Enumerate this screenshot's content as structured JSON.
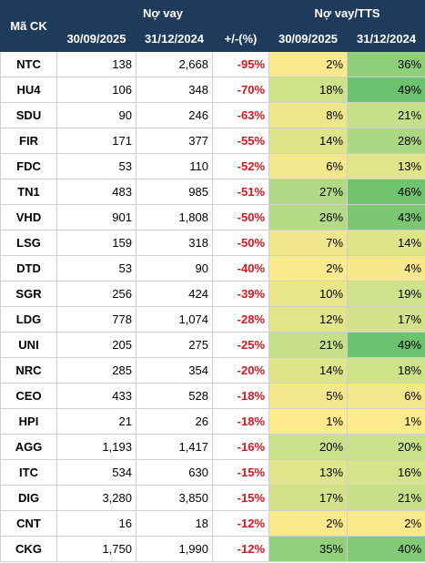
{
  "header": {
    "code_label": "Mã CK",
    "debt_label": "Nợ vay",
    "ratio_label": "Nợ vay/TTS",
    "col_2025": "30/09/2025",
    "col_2024": "31/12/2024",
    "change_label": "+/-(%)",
    "ratio_2025": "30/09/2025",
    "ratio_2024": "31/12/2024"
  },
  "rows": [
    {
      "code": "NTC",
      "d2025": "138",
      "d2024": "2,668",
      "chg": "-95%",
      "r2025": "2%",
      "r2024": "36%",
      "c2025": "#fce98c",
      "c2024": "#8fcf7a"
    },
    {
      "code": "HU4",
      "d2025": "106",
      "d2024": "348",
      "chg": "-70%",
      "r2025": "18%",
      "r2024": "49%",
      "c2025": "#cfe28a",
      "c2024": "#6cc36f"
    },
    {
      "code": "SDU",
      "d2025": "90",
      "d2024": "246",
      "chg": "-63%",
      "r2025": "8%",
      "r2024": "21%",
      "c2025": "#eee68a",
      "c2024": "#c6e08a"
    },
    {
      "code": "FIR",
      "d2025": "171",
      "d2024": "377",
      "chg": "-55%",
      "r2025": "14%",
      "r2024": "28%",
      "c2025": "#dde48a",
      "c2024": "#acd884"
    },
    {
      "code": "FDC",
      "d2025": "53",
      "d2024": "110",
      "chg": "-52%",
      "r2025": "6%",
      "r2024": "13%",
      "c2025": "#f3e78b",
      "c2024": "#e0e48a"
    },
    {
      "code": "TN1",
      "d2025": "483",
      "d2024": "985",
      "chg": "-51%",
      "r2025": "27%",
      "r2024": "46%",
      "c2025": "#b0d985",
      "c2024": "#71c570"
    },
    {
      "code": "VHD",
      "d2025": "901",
      "d2024": "1,808",
      "chg": "-50%",
      "r2025": "26%",
      "r2024": "43%",
      "c2025": "#b4da86",
      "c2024": "#7bc773"
    },
    {
      "code": "LSG",
      "d2025": "159",
      "d2024": "318",
      "chg": "-50%",
      "r2025": "7%",
      "r2024": "14%",
      "c2025": "#f0e68b",
      "c2024": "#dde48a"
    },
    {
      "code": "DTD",
      "d2025": "53",
      "d2024": "90",
      "chg": "-40%",
      "r2025": "2%",
      "r2024": "4%",
      "c2025": "#fce98c",
      "c2024": "#f7e88b"
    },
    {
      "code": "SGR",
      "d2025": "256",
      "d2024": "424",
      "chg": "-39%",
      "r2025": "10%",
      "r2024": "19%",
      "c2025": "#e8e58a",
      "c2024": "#cde28a"
    },
    {
      "code": "LDG",
      "d2025": "778",
      "d2024": "1,074",
      "chg": "-28%",
      "r2025": "12%",
      "r2024": "17%",
      "c2025": "#e2e48a",
      "c2024": "#d3e28a"
    },
    {
      "code": "UNI",
      "d2025": "205",
      "d2024": "275",
      "chg": "-25%",
      "r2025": "21%",
      "r2024": "49%",
      "c2025": "#c6e08a",
      "c2024": "#6cc36f"
    },
    {
      "code": "NRC",
      "d2025": "285",
      "d2024": "354",
      "chg": "-20%",
      "r2025": "14%",
      "r2024": "18%",
      "c2025": "#dde48a",
      "c2024": "#cfe28a"
    },
    {
      "code": "CEO",
      "d2025": "433",
      "d2024": "528",
      "chg": "-18%",
      "r2025": "5%",
      "r2024": "6%",
      "c2025": "#f5e78b",
      "c2024": "#f3e78b"
    },
    {
      "code": "HPI",
      "d2025": "21",
      "d2024": "26",
      "chg": "-18%",
      "r2025": "1%",
      "r2024": "1%",
      "c2025": "#ffea8c",
      "c2024": "#ffea8c"
    },
    {
      "code": "AGG",
      "d2025": "1,193",
      "d2024": "1,417",
      "chg": "-16%",
      "r2025": "20%",
      "r2024": "20%",
      "c2025": "#c9e18a",
      "c2024": "#c9e18a"
    },
    {
      "code": "ITC",
      "d2025": "534",
      "d2024": "630",
      "chg": "-15%",
      "r2025": "13%",
      "r2024": "16%",
      "c2025": "#e0e48a",
      "c2024": "#d6e38a"
    },
    {
      "code": "DIG",
      "d2025": "3,280",
      "d2024": "3,850",
      "chg": "-15%",
      "r2025": "17%",
      "r2024": "21%",
      "c2025": "#d3e28a",
      "c2024": "#c6e08a"
    },
    {
      "code": "CNT",
      "d2025": "16",
      "d2024": "18",
      "chg": "-12%",
      "r2025": "2%",
      "r2024": "2%",
      "c2025": "#fce98c",
      "c2024": "#fce98c"
    },
    {
      "code": "CKG",
      "d2025": "1,750",
      "d2024": "1,990",
      "chg": "-12%",
      "r2025": "35%",
      "r2024": "40%",
      "c2025": "#92d07b",
      "c2024": "#84ca76"
    }
  ]
}
